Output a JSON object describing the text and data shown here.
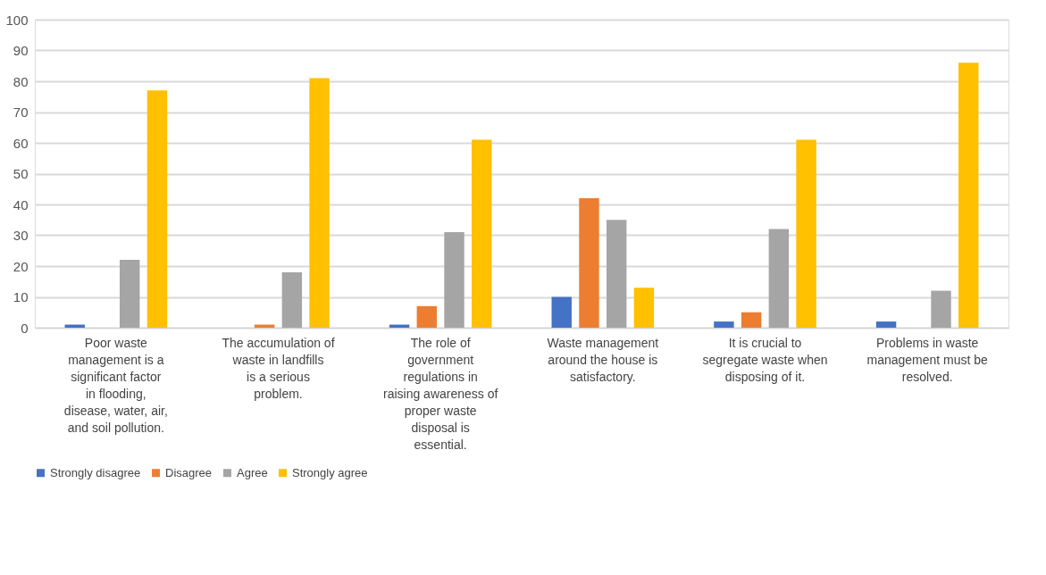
{
  "chart_data": {
    "type": "bar",
    "categories": [
      "Poor waste management is a significant factor in flooding, disease, water, air, and soil pollution.",
      "The accumulation of waste in landfills is a serious problem.",
      "The role of government regulations in raising awareness of proper waste disposal is essential.",
      "Waste management around the house is satisfactory.",
      "It is crucial to segregate waste when disposing of it.",
      "Problems in waste management must be resolved."
    ],
    "series": [
      {
        "name": "Strongly disagree",
        "color": "#4472c4",
        "values": [
          1,
          0,
          1,
          10,
          2,
          2
        ]
      },
      {
        "name": "Disagree",
        "color": "#ed7d31",
        "values": [
          0,
          1,
          7,
          42,
          5,
          0
        ]
      },
      {
        "name": "Agree",
        "color": "#a5a5a5",
        "values": [
          22,
          18,
          31,
          35,
          32,
          12
        ]
      },
      {
        "name": "Strongly agree",
        "color": "#ffc000",
        "values": [
          77,
          81,
          61,
          13,
          61,
          86
        ]
      }
    ],
    "ylim": [
      0,
      100
    ],
    "yticks": [
      0,
      10,
      20,
      30,
      40,
      50,
      60,
      70,
      80,
      90,
      100
    ],
    "grid": "y",
    "legend": "bottom"
  }
}
